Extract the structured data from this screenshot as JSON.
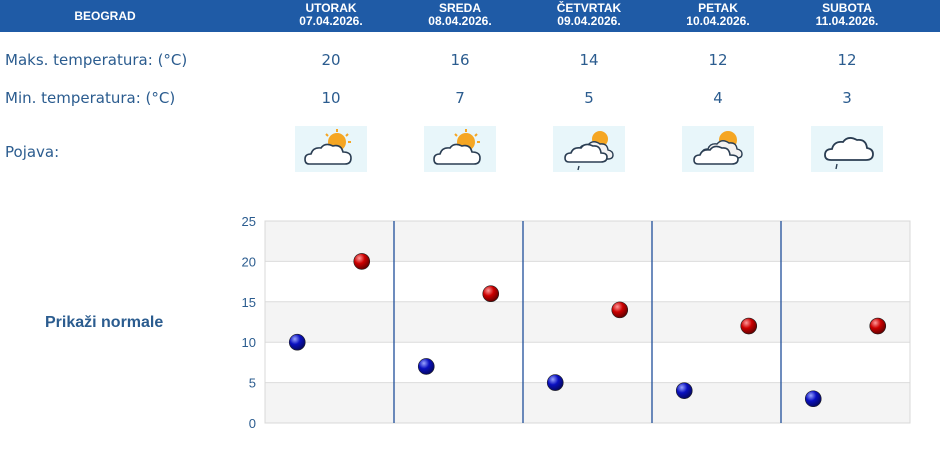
{
  "header": {
    "city": "BEOGRAD",
    "days": [
      {
        "name": "UTORAK",
        "date": "07.04.2026."
      },
      {
        "name": "SREDA",
        "date": "08.04.2026."
      },
      {
        "name": "ČETVRTAK",
        "date": "09.04.2026."
      },
      {
        "name": "PETAK",
        "date": "10.04.2026."
      },
      {
        "name": "SUBOTA",
        "date": "11.04.2026."
      }
    ]
  },
  "rows": {
    "max_label": "Maks. temperatura: (°C)",
    "min_label": "Min. temperatura: (°C)",
    "phenomenon_label": "Pojava:",
    "max_values": [
      "20",
      "16",
      "14",
      "12",
      "12"
    ],
    "min_values": [
      "10",
      "7",
      "5",
      "4",
      "3"
    ],
    "icons": [
      "partly-cloudy-sun-icon",
      "partly-cloudy-sun-icon",
      "cloudy-sun-light-rain-icon",
      "mostly-cloudy-sun-icon",
      "cloud-light-rain-icon"
    ]
  },
  "normals_link": "Prikaži normale",
  "colors": {
    "header_bg": "#1f5ba6",
    "text": "#2b5c8f",
    "min_dot": "#0a10c0",
    "max_dot": "#cc0000",
    "divider": "#1f4f9a"
  },
  "chart_data": {
    "type": "scatter",
    "ylim": [
      0,
      25
    ],
    "yticks": [
      "0",
      "5",
      "10",
      "15",
      "20",
      "25"
    ],
    "grid": true,
    "categories": [
      "UTORAK",
      "SREDA",
      "ČETVRTAK",
      "PETAK",
      "SUBOTA"
    ],
    "series": [
      {
        "values": [
          10,
          7,
          5,
          4,
          3
        ]
      },
      {
        "values": [
          20,
          16,
          14,
          12,
          12
        ]
      }
    ]
  }
}
